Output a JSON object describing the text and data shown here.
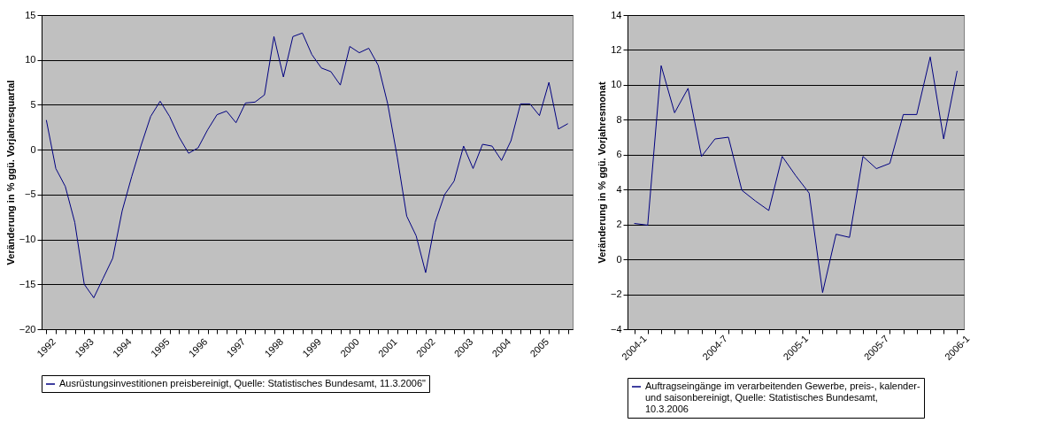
{
  "chart_data": [
    {
      "type": "line",
      "ylabel": "Veränderung in  % ggü. Vorjahresquartal",
      "categories": [
        "1992",
        null,
        null,
        null,
        "1993",
        null,
        null,
        null,
        "1994",
        null,
        null,
        null,
        "1995",
        null,
        null,
        null,
        "1996",
        null,
        null,
        null,
        "1997",
        null,
        null,
        null,
        "1998",
        null,
        null,
        null,
        "1999",
        null,
        null,
        null,
        "2000",
        null,
        null,
        null,
        "2001",
        null,
        null,
        null,
        "2002",
        null,
        null,
        null,
        "2003",
        null,
        null,
        null,
        "2004",
        null,
        null,
        null,
        "2005",
        null,
        null,
        null
      ],
      "series": [
        {
          "name": "Ausrüstungsinvestitionen preisbereinigt, Quelle: Statistisches Bundesamt, 11.3.2006\"",
          "color": "#000080",
          "values": [
            3.3,
            -2.1,
            -4.1,
            -8.1,
            -15.0,
            -16.5,
            -14.3,
            -12.1,
            -6.8,
            -3.0,
            0.5,
            3.7,
            5.4,
            3.7,
            1.4,
            -0.4,
            0.2,
            2.2,
            3.9,
            4.3,
            3.0,
            5.2,
            5.3,
            6.1,
            12.6,
            8.1,
            12.6,
            13.0,
            10.6,
            9.1,
            8.7,
            7.2,
            11.5,
            10.8,
            11.3,
            9.4,
            5.1,
            -0.8,
            -7.4,
            -9.6,
            -13.7,
            -8.1,
            -5.0,
            -3.5,
            0.4,
            -2.1,
            0.6,
            0.4,
            -1.2,
            1.0,
            5.1,
            5.1,
            3.8,
            7.5,
            2.3,
            2.9
          ]
        }
      ],
      "ylim": [
        -20,
        15
      ],
      "yticks": [
        -20,
        -15,
        -10,
        -5,
        0,
        5,
        10,
        15
      ],
      "grid": "y",
      "legend": "bottom"
    },
    {
      "type": "line",
      "ylabel": "Veränderung in  % ggü. Vorjahresmonat",
      "categories": [
        "2004-1",
        null,
        null,
        null,
        null,
        null,
        "2004-7",
        null,
        null,
        null,
        null,
        null,
        "2005-1",
        null,
        null,
        null,
        null,
        null,
        "2005-7",
        null,
        null,
        null,
        null,
        null,
        "2006-1"
      ],
      "series": [
        {
          "name": "Auftragseingänge im verarbeitenden Gewerbe, preis-, kalender- und saisonbereinigt, Quelle: Statistisches Bundesamt, 10.3.2006",
          "color": "#000080",
          "values": [
            2.06,
            1.96,
            11.1,
            8.4,
            9.8,
            5.9,
            6.9,
            7.0,
            3.96,
            3.35,
            2.8,
            5.9,
            4.8,
            3.8,
            -1.9,
            1.44,
            1.26,
            5.9,
            5.2,
            5.5,
            8.3,
            8.3,
            11.6,
            6.9,
            10.8
          ]
        }
      ],
      "ylim": [
        -4,
        14
      ],
      "yticks": [
        -4,
        -2,
        0,
        2,
        4,
        6,
        8,
        10,
        12,
        14
      ],
      "grid": "y",
      "legend": "bottom"
    }
  ]
}
